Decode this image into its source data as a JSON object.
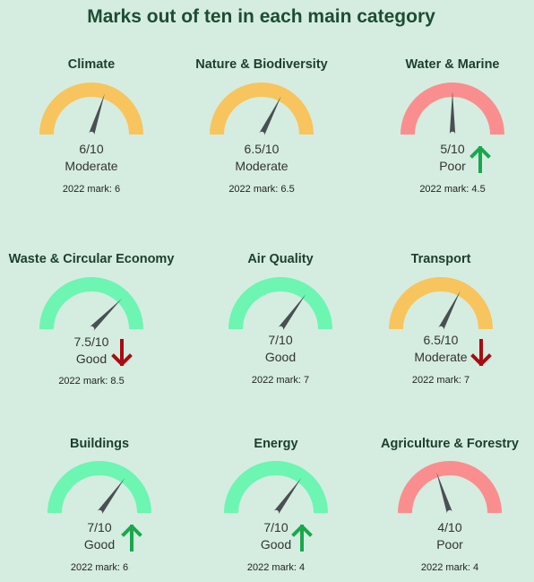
{
  "title": "Marks out of ten in each main category",
  "colors": {
    "good": "#6df5b2",
    "moderate": "#f8c45e",
    "poor": "#fa8e8e",
    "needle": "#4a4f54",
    "arrow_up": "#18a84b",
    "arrow_down": "#a80c12"
  },
  "chart_data": {
    "type": "gauge",
    "max": 10,
    "categories": [
      {
        "name": "Climate",
        "score_text": "6/10",
        "value": 6,
        "rating": "Moderate",
        "prev_text": "2022 mark: 6",
        "prev": 6,
        "trend": "none"
      },
      {
        "name": "Nature & Biodiversity",
        "score_text": "6.5/10",
        "value": 6.5,
        "rating": "Moderate",
        "prev_text": "2022 mark: 6.5",
        "prev": 6.5,
        "trend": "none"
      },
      {
        "name": "Water & Marine",
        "score_text": "5/10",
        "value": 5,
        "rating": "Poor",
        "prev_text": "2022 mark: 4.5",
        "prev": 4.5,
        "trend": "up"
      },
      {
        "name": "Waste & Circular Economy",
        "score_text": "7.5/10",
        "value": 7.5,
        "rating": "Good",
        "prev_text": "2022 mark: 8.5",
        "prev": 8.5,
        "trend": "down"
      },
      {
        "name": "Air Quality",
        "score_text": "7/10",
        "value": 7,
        "rating": "Good",
        "prev_text": "2022 mark: 7",
        "prev": 7,
        "trend": "none"
      },
      {
        "name": "Transport",
        "score_text": "6.5/10",
        "value": 6.5,
        "rating": "Moderate",
        "prev_text": "2022 mark: 7",
        "prev": 7,
        "trend": "down"
      },
      {
        "name": "Buildings",
        "score_text": "7/10",
        "value": 7,
        "rating": "Good",
        "prev_text": "2022 mark: 6",
        "prev": 6,
        "trend": "up"
      },
      {
        "name": "Energy",
        "score_text": "7/10",
        "value": 7,
        "rating": "Good",
        "prev_text": "2022 mark: 4",
        "prev": 4,
        "trend": "up"
      },
      {
        "name": "Agriculture & Forestry",
        "score_text": "4/10",
        "value": 4,
        "rating": "Poor",
        "prev_text": "2022 mark: 4",
        "prev": 4,
        "trend": "none"
      }
    ]
  }
}
